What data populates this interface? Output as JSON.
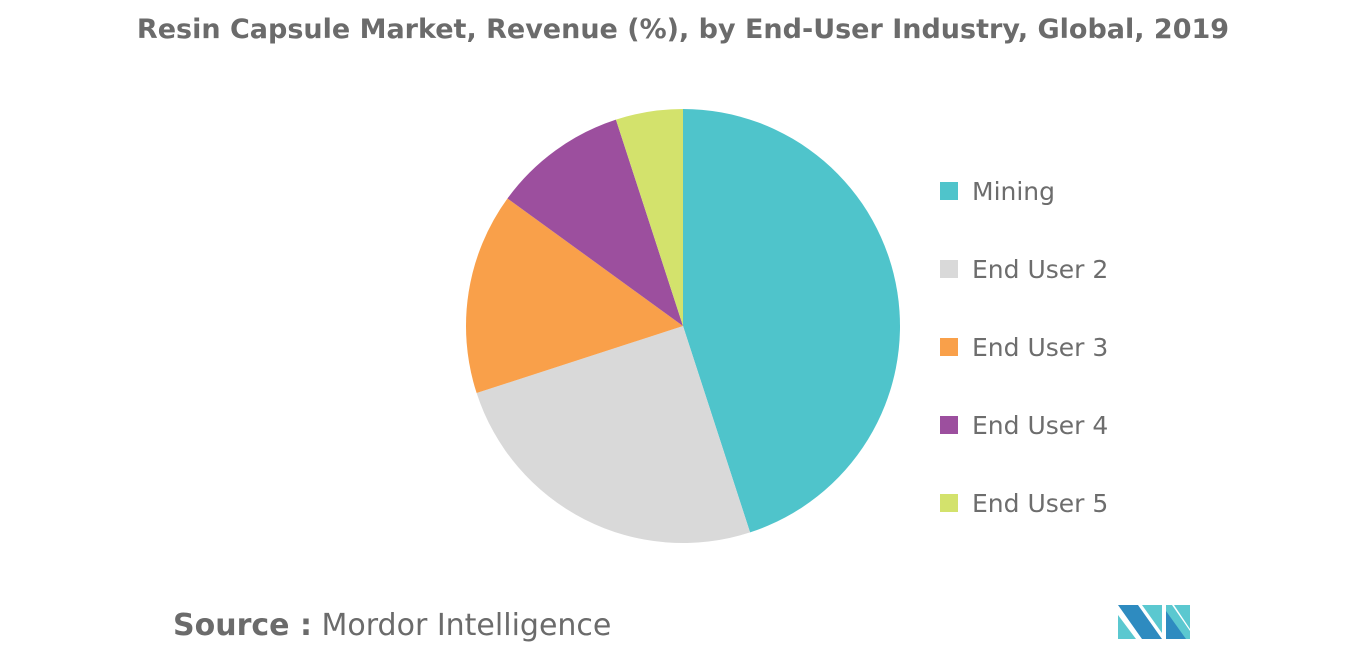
{
  "chart_data": {
    "type": "pie",
    "title": "Resin Capsule Market, Revenue (%), by End-User Industry, Global, 2019",
    "categories": [
      "Mining",
      "End User 2",
      "End User 3",
      "End User 4",
      "End User 5"
    ],
    "values": [
      45,
      25,
      15,
      10,
      5
    ],
    "colors": [
      "#4FC4CB",
      "#D9D9D9",
      "#F9A04A",
      "#9C4F9E",
      "#D3E26C"
    ],
    "start_angle": "12 o'clock",
    "direction": "clockwise",
    "legend_placement": "right"
  },
  "source": {
    "label": "Source :",
    "value": "Mordor Intelligence"
  },
  "logo": {
    "icon": "mordor-intelligence-logo",
    "colors": [
      "#2E8BC0",
      "#5BC8D0"
    ]
  }
}
